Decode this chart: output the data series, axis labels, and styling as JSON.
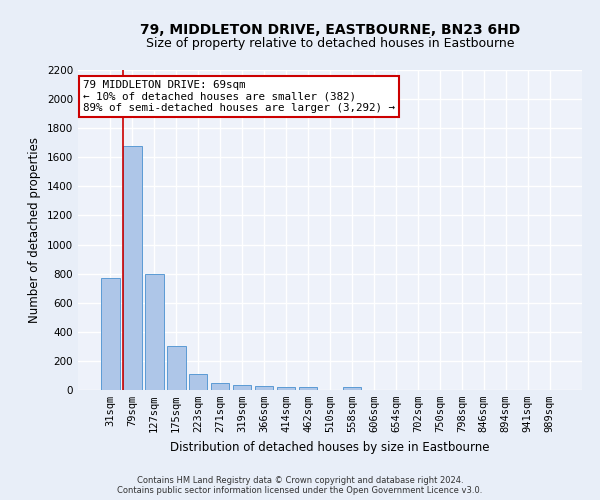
{
  "title": "79, MIDDLETON DRIVE, EASTBOURNE, BN23 6HD",
  "subtitle": "Size of property relative to detached houses in Eastbourne",
  "xlabel": "Distribution of detached houses by size in Eastbourne",
  "ylabel": "Number of detached properties",
  "categories": [
    "31sqm",
    "79sqm",
    "127sqm",
    "175sqm",
    "223sqm",
    "271sqm",
    "319sqm",
    "366sqm",
    "414sqm",
    "462sqm",
    "510sqm",
    "558sqm",
    "606sqm",
    "654sqm",
    "702sqm",
    "750sqm",
    "798sqm",
    "846sqm",
    "894sqm",
    "941sqm",
    "989sqm"
  ],
  "values": [
    770,
    1680,
    795,
    300,
    110,
    45,
    35,
    27,
    22,
    20,
    0,
    20,
    0,
    0,
    0,
    0,
    0,
    0,
    0,
    0,
    0
  ],
  "bar_color": "#aec6e8",
  "bar_edgecolor": "#5b9bd5",
  "highlight_bar_index": 1,
  "highlight_color": "#cc0000",
  "ylim": [
    0,
    2200
  ],
  "yticks": [
    0,
    200,
    400,
    600,
    800,
    1000,
    1200,
    1400,
    1600,
    1800,
    2000,
    2200
  ],
  "annotation_text": "79 MIDDLETON DRIVE: 69sqm\n← 10% of detached houses are smaller (382)\n89% of semi-detached houses are larger (3,292) →",
  "annotation_box_color": "#ffffff",
  "annotation_box_edgecolor": "#cc0000",
  "footer_line1": "Contains HM Land Registry data © Crown copyright and database right 2024.",
  "footer_line2": "Contains public sector information licensed under the Open Government Licence v3.0.",
  "background_color": "#e8eef8",
  "plot_background_color": "#eef2fa",
  "grid_color": "#ffffff",
  "title_fontsize": 10,
  "subtitle_fontsize": 9,
  "tick_fontsize": 7.5,
  "ylabel_fontsize": 8.5,
  "xlabel_fontsize": 8.5,
  "annotation_fontsize": 7.8,
  "footer_fontsize": 6.0
}
